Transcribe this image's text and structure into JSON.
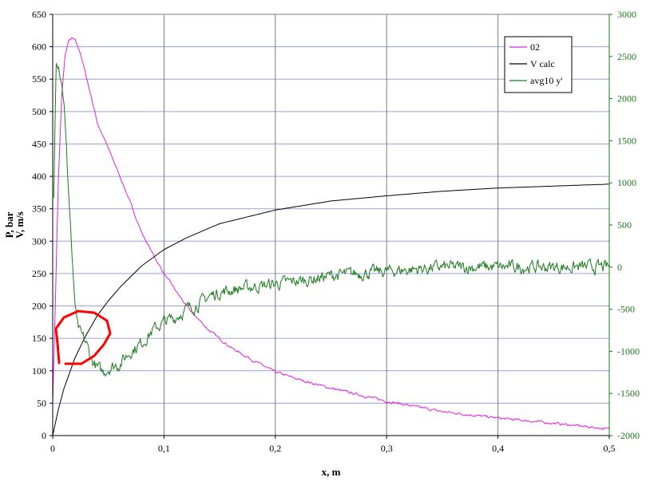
{
  "chart_data": {
    "type": "line",
    "xlabel": "x, m",
    "ylabel_left": [
      "P, bar",
      "V, m/s"
    ],
    "xlim": [
      0,
      0.5
    ],
    "ylim_left": [
      0,
      650
    ],
    "ylim_right": [
      -2000,
      3000
    ],
    "x_ticks": [
      "0",
      "0,1",
      "0,2",
      "0,3",
      "0,4",
      "0,5"
    ],
    "y_ticks_left": [
      "0",
      "50",
      "100",
      "150",
      "200",
      "250",
      "300",
      "350",
      "400",
      "450",
      "500",
      "550",
      "600",
      "650"
    ],
    "y_ticks_right": [
      "-2000",
      "-1500",
      "-1000",
      "-500",
      "0",
      "500",
      "1000",
      "1500",
      "2000",
      "2500",
      "3000"
    ],
    "grid": true,
    "legend_position": "top-right",
    "colors": {
      "02": "#e020e0",
      "V calc": "#000000",
      "avg10 y'": "#1a7a1a",
      "grid": "#9aa0d8",
      "annotation": "#ff0000"
    },
    "series": [
      {
        "name": "02",
        "axis": "left",
        "x": [
          0,
          0.002,
          0.005,
          0.008,
          0.011,
          0.014,
          0.017,
          0.02,
          0.025,
          0.03,
          0.035,
          0.04,
          0.05,
          0.06,
          0.07,
          0.08,
          0.09,
          0.1,
          0.12,
          0.14,
          0.16,
          0.18,
          0.2,
          0.22,
          0.25,
          0.3,
          0.35,
          0.4,
          0.45,
          0.5
        ],
        "y": [
          50,
          180,
          390,
          520,
          585,
          608,
          613,
          610,
          590,
          555,
          520,
          483,
          443,
          402,
          358,
          313,
          280,
          250,
          200,
          163,
          136,
          116,
          98,
          87,
          73,
          53,
          37,
          27,
          19,
          10
        ]
      },
      {
        "name": "V calc",
        "axis": "left",
        "x": [
          0,
          0.005,
          0.01,
          0.02,
          0.03,
          0.04,
          0.05,
          0.06,
          0.08,
          0.1,
          0.12,
          0.15,
          0.2,
          0.25,
          0.3,
          0.35,
          0.4,
          0.45,
          0.5
        ],
        "y": [
          0,
          40,
          72,
          120,
          155,
          185,
          208,
          228,
          262,
          287,
          305,
          327,
          348,
          362,
          370,
          377,
          382,
          385,
          388
        ]
      },
      {
        "name": "avg10 y'",
        "axis": "right",
        "x": [
          0.001,
          0.003,
          0.005,
          0.007,
          0.01,
          0.013,
          0.016,
          0.019,
          0.022,
          0.025,
          0.03,
          0.035,
          0.04,
          0.045,
          0.05,
          0.06,
          0.07,
          0.08,
          0.09,
          0.1,
          0.11,
          0.12,
          0.13,
          0.14,
          0.15,
          0.17,
          0.2,
          0.23,
          0.25,
          0.3,
          0.35,
          0.4,
          0.45,
          0.5
        ],
        "y": [
          800,
          2500,
          2450,
          2300,
          2000,
          1200,
          500,
          -300,
          -700,
          -800,
          -900,
          -1100,
          -1200,
          -1250,
          -1200,
          -1150,
          -1000,
          -900,
          -750,
          -650,
          -600,
          -500,
          -450,
          -350,
          -300,
          -250,
          -200,
          -150,
          -100,
          -50,
          0,
          0,
          0,
          0
        ]
      }
    ]
  },
  "annotation": {
    "color": "#ff0000",
    "shape": "hand-drawn loop"
  }
}
